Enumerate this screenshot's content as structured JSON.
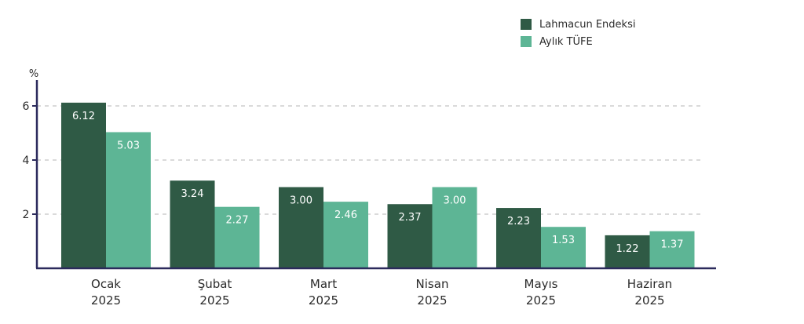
{
  "chart_data": {
    "type": "bar",
    "ylabel": "%",
    "ylim": [
      0,
      6.2
    ],
    "yticks": [
      2,
      4,
      6
    ],
    "grid": "horizontal-dashed",
    "legend_position": "top-right",
    "categories": [
      "Ocak 2025",
      "Şubat 2025",
      "Mart 2025",
      "Nisan 2025",
      "Mayıs 2025",
      "Haziran 2025"
    ],
    "category_lines": [
      [
        "Ocak",
        "2025"
      ],
      [
        "Şubat",
        "2025"
      ],
      [
        "Mart",
        "2025"
      ],
      [
        "Nisan",
        "2025"
      ],
      [
        "Mayıs",
        "2025"
      ],
      [
        "Haziran",
        "2025"
      ]
    ],
    "value_labels": [
      [
        "6.12",
        "3.24",
        "3.00",
        "2.37",
        "2.23",
        "1.22"
      ],
      [
        "5.03",
        "2.27",
        "2.46",
        "3.00",
        "1.53",
        "1.37"
      ]
    ],
    "series": [
      {
        "name": "Lahmacun Endeksi",
        "color": "#2f5a45",
        "values": [
          6.12,
          3.24,
          3.0,
          2.37,
          2.23,
          1.22
        ]
      },
      {
        "name": "Aylık TÜFE",
        "color": "#5db595",
        "values": [
          5.03,
          2.27,
          2.46,
          3.0,
          1.53,
          1.37
        ]
      }
    ],
    "axis_color": "#2b2a5c",
    "grid_color": "#b5b5b5"
  }
}
